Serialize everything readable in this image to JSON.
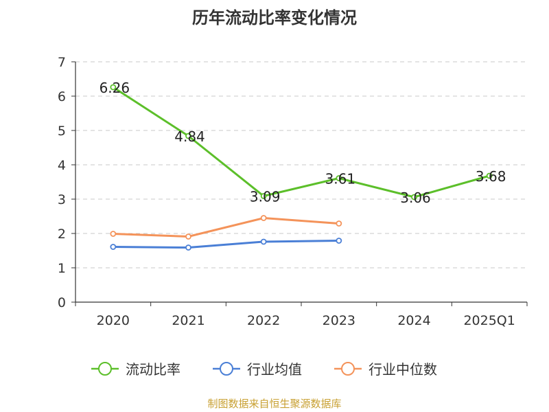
{
  "chart_data": {
    "type": "line",
    "title": "历年流动比率变化情况",
    "categories": [
      "2020",
      "2021",
      "2022",
      "2023",
      "2024",
      "2025Q1"
    ],
    "ylim": [
      0,
      7
    ],
    "yticks": [
      "0",
      "1",
      "2",
      "3",
      "4",
      "5",
      "6",
      "7"
    ],
    "grid": "horizontal-dashed",
    "legend_position": "bottom",
    "series": [
      {
        "name": "流动比率",
        "color": "#5cbf2a",
        "values": [
          6.26,
          4.84,
          3.09,
          3.61,
          3.06,
          3.68
        ],
        "labels": [
          "6.26",
          "4.84",
          "3.09",
          "3.61",
          "3.06",
          "3.68"
        ]
      },
      {
        "name": "行业均值",
        "color": "#4a7fd6",
        "values": [
          1.61,
          1.59,
          1.76,
          1.79,
          null,
          null
        ]
      },
      {
        "name": "行业中位数",
        "color": "#f4935a",
        "values": [
          1.99,
          1.91,
          2.45,
          2.29,
          null,
          null
        ]
      }
    ]
  },
  "source_note": "制图数据来自恒生聚源数据库"
}
